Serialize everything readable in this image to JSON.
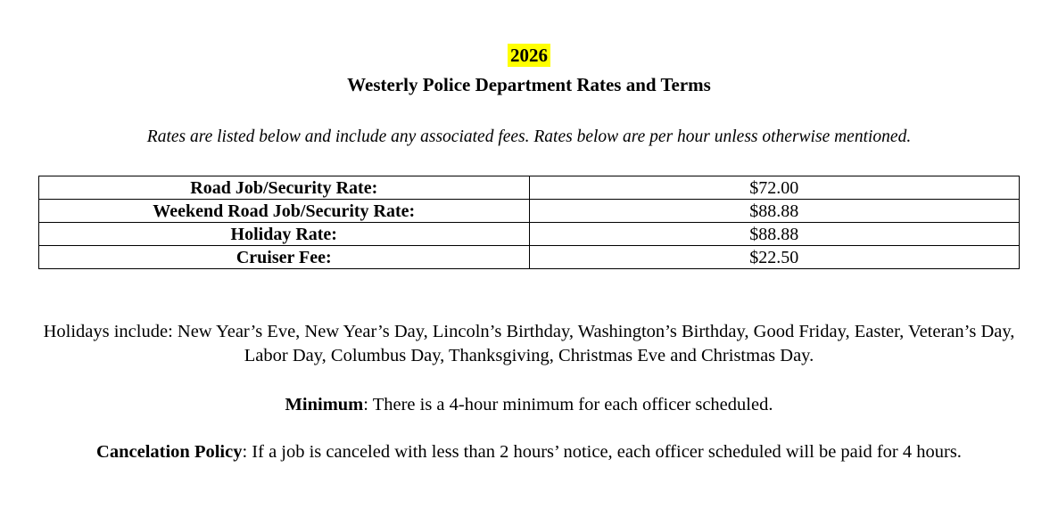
{
  "page": {
    "year": "2026",
    "title": "Westerly Police Department Rates and Terms",
    "subtitle": "Rates are listed below and include any associated fees. Rates below are per hour unless otherwise mentioned."
  },
  "rates_table": {
    "rows": [
      {
        "label": "Road Job/Security Rate:",
        "value": "$72.00"
      },
      {
        "label": "Weekend Road Job/Security Rate:",
        "value": "$88.88"
      },
      {
        "label": "Holiday Rate:",
        "value": "$88.88"
      },
      {
        "label": "Cruiser Fee:",
        "value": "$22.50"
      }
    ]
  },
  "paragraphs": {
    "holidays": "Holidays include: New Year’s Eve, New Year’s Day, Lincoln’s Birthday, Washington’s Birthday, Good Friday, Easter, Veteran’s Day, Labor Day, Columbus Day, Thanksgiving, Christmas Eve and Christmas Day.",
    "minimum_label": "Minimum",
    "minimum_text": ": There is a 4-hour minimum for each officer scheduled.",
    "cancelation_label": "Cancelation Policy",
    "cancelation_text": ": If a job is canceled with less than 2 hours’ notice, each officer scheduled will be paid for 4 hours."
  },
  "colors": {
    "highlight": "#FFFF00",
    "text": "#000000",
    "background": "#FFFFFF"
  }
}
